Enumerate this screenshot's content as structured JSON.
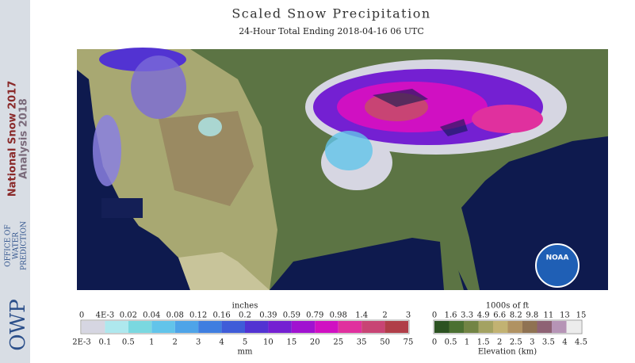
{
  "header": {
    "title": "Scaled Snow Precipitation",
    "subtitle": "24-Hour Total Ending 2018-04-16 06 UTC"
  },
  "sidebar": {
    "line1": "National Snow 2017",
    "line2": "Analysis 2018",
    "office": [
      "OFFICE OF",
      "WATER",
      "PREDICTION"
    ],
    "logo": "OWP"
  },
  "noaa_logo": "NOAA",
  "precip_legend": {
    "top_title": "inches",
    "top_labels": [
      "0",
      "4E-3",
      "0.02",
      "0.04",
      "0.08",
      "0.12",
      "0.16",
      "0.2",
      "0.39",
      "0.59",
      "0.79",
      "0.98",
      "1.4",
      "2",
      "3"
    ],
    "bottom_labels": [
      "2E-3",
      "0.1",
      "0.5",
      "1",
      "2",
      "3",
      "4",
      "5",
      "10",
      "15",
      "20",
      "25",
      "35",
      "50",
      "75"
    ],
    "bottom_title": "mm",
    "colors": [
      "#d6d6e2",
      "#aee8ee",
      "#7ad8e0",
      "#62c4ea",
      "#4ea4e8",
      "#3f7ee0",
      "#3f5cd8",
      "#5233d2",
      "#7420d2",
      "#a012d0",
      "#d010c2",
      "#e0309e",
      "#c84474",
      "#b03e48"
    ]
  },
  "elev_legend": {
    "top_title": "1000s of ft",
    "top_labels": [
      "0",
      "1.6",
      "3.3",
      "4.9",
      "6.6",
      "8.2",
      "9.8",
      "11",
      "13",
      "15"
    ],
    "bottom_labels": [
      "0",
      "0.5",
      "1",
      "1.5",
      "2",
      "2.5",
      "3",
      "3.5",
      "4",
      "4.5"
    ],
    "bottom_title": "Elevation (km)",
    "colors": [
      "#2c5222",
      "#4b7032",
      "#728444",
      "#a3a262",
      "#c2b272",
      "#b09262",
      "#8f7252",
      "#8e6274",
      "#b694b6",
      "#ececec"
    ]
  }
}
